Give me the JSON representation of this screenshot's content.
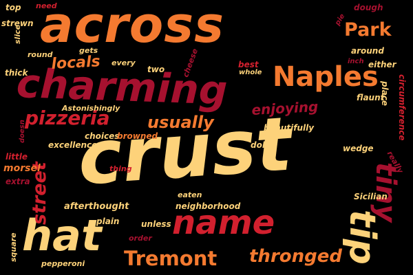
{
  "palette": {
    "background": "#000000",
    "light_orange": "#FBB860",
    "yellow": "#FDD27A",
    "orange": "#F47A30",
    "red": "#D2202E",
    "dark_red": "#A6112F",
    "maroon": "#7E1335"
  },
  "words": [
    {
      "text": "across",
      "color": "#F47A30"
    },
    {
      "text": "charming",
      "color": "#A6112F"
    },
    {
      "text": "crust",
      "color": "#FDD27A"
    },
    {
      "text": "name",
      "color": "#D2202E"
    },
    {
      "text": "hat",
      "color": "#FDD27A"
    },
    {
      "text": "Naples",
      "color": "#F47A30"
    },
    {
      "text": "Park",
      "color": "#F47A30"
    },
    {
      "text": "pizzeria",
      "color": "#D2202E"
    },
    {
      "text": "usually",
      "color": "#F47A30"
    },
    {
      "text": "locals",
      "color": "#F47A30"
    },
    {
      "text": "enjoying",
      "color": "#A6112F"
    },
    {
      "text": "tiny",
      "color": "#A6112F"
    },
    {
      "text": "Tremont",
      "color": "#F47A30"
    },
    {
      "text": "thronged",
      "color": "#F47A30"
    },
    {
      "text": "street",
      "color": "#D2202E"
    },
    {
      "text": "tip",
      "color": "#FDD27A"
    },
    {
      "text": "top",
      "color": "#FDD27A"
    },
    {
      "text": "need",
      "color": "#D2202E"
    },
    {
      "text": "dough",
      "color": "#A6112F"
    },
    {
      "text": "strewn",
      "color": "#FDD27A"
    },
    {
      "text": "slice",
      "color": "#FDD27A"
    },
    {
      "text": "round",
      "color": "#FDD27A"
    },
    {
      "text": "gets",
      "color": "#FDD27A"
    },
    {
      "text": "every",
      "color": "#FDD27A"
    },
    {
      "text": "two",
      "color": "#FDD27A"
    },
    {
      "text": "cheese",
      "color": "#A6112F"
    },
    {
      "text": "best",
      "color": "#D2202E"
    },
    {
      "text": "whole",
      "color": "#FDD27A"
    },
    {
      "text": "inch",
      "color": "#A6112F"
    },
    {
      "text": "pie",
      "color": "#A6112F"
    },
    {
      "text": "around",
      "color": "#FDD27A"
    },
    {
      "text": "either",
      "color": "#FDD27A"
    },
    {
      "text": "thick",
      "color": "#FDD27A"
    },
    {
      "text": "flaunt",
      "color": "#FDD27A"
    },
    {
      "text": "place",
      "color": "#FDD27A"
    },
    {
      "text": "circumference",
      "color": "#D2202E"
    },
    {
      "text": "Astonishingly",
      "color": "#FDD27A"
    },
    {
      "text": "doesn",
      "color": "#A6112F"
    },
    {
      "text": "choices",
      "color": "#FDD27A"
    },
    {
      "text": "excellence",
      "color": "#FDD27A"
    },
    {
      "text": "browned",
      "color": "#F47A30"
    },
    {
      "text": "beautifully",
      "color": "#FDD27A"
    },
    {
      "text": "doll",
      "color": "#FDD27A"
    },
    {
      "text": "wedge",
      "color": "#FDD27A"
    },
    {
      "text": "really",
      "color": "#A6112F"
    },
    {
      "text": "little",
      "color": "#D2202E"
    },
    {
      "text": "morsel",
      "color": "#F47A30"
    },
    {
      "text": "extra",
      "color": "#A6112F"
    },
    {
      "text": "thing",
      "color": "#D2202E"
    },
    {
      "text": "afterthought",
      "color": "#FDD27A"
    },
    {
      "text": "eaten",
      "color": "#FDD27A"
    },
    {
      "text": "neighborhood",
      "color": "#FDD27A"
    },
    {
      "text": "Sicilian",
      "color": "#FDD27A"
    },
    {
      "text": "plain",
      "color": "#FDD27A"
    },
    {
      "text": "unless",
      "color": "#FDD27A"
    },
    {
      "text": "order",
      "color": "#A6112F"
    },
    {
      "text": "square",
      "color": "#FDD27A"
    },
    {
      "text": "pepperoni",
      "color": "#FDD27A"
    }
  ]
}
